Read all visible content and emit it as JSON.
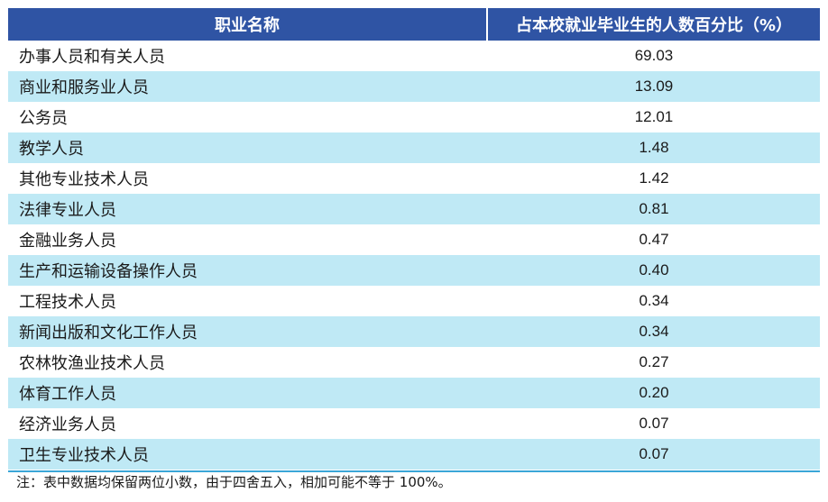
{
  "table": {
    "header": {
      "col1": "职业名称",
      "col2": "占本校就业毕业生的人数百分比（%）"
    },
    "rows": [
      {
        "name": "办事人员和有关人员",
        "value": "69.03"
      },
      {
        "name": "商业和服务业人员",
        "value": "13.09"
      },
      {
        "name": "公务员",
        "value": "12.01"
      },
      {
        "name": "教学人员",
        "value": "1.48"
      },
      {
        "name": "其他专业技术人员",
        "value": "1.42"
      },
      {
        "name": "法律专业人员",
        "value": "0.81"
      },
      {
        "name": "金融业务人员",
        "value": "0.47"
      },
      {
        "name": "生产和运输设备操作人员",
        "value": "0.40"
      },
      {
        "name": "工程技术人员",
        "value": "0.34"
      },
      {
        "name": "新闻出版和文化工作人员",
        "value": "0.34"
      },
      {
        "name": "农林牧渔业技术人员",
        "value": "0.27"
      },
      {
        "name": "体育工作人员",
        "value": "0.20"
      },
      {
        "name": "经济业务人员",
        "value": "0.07"
      },
      {
        "name": "卫生专业技术人员",
        "value": "0.07"
      }
    ]
  },
  "note": "注：表中数据均保留两位小数，由于四舍五入，相加可能不等于 100%。",
  "colors": {
    "header_bg": "#2f54a4",
    "alt_row_bg": "#bfe9f5",
    "bottom_rule": "#3aa6d8"
  }
}
